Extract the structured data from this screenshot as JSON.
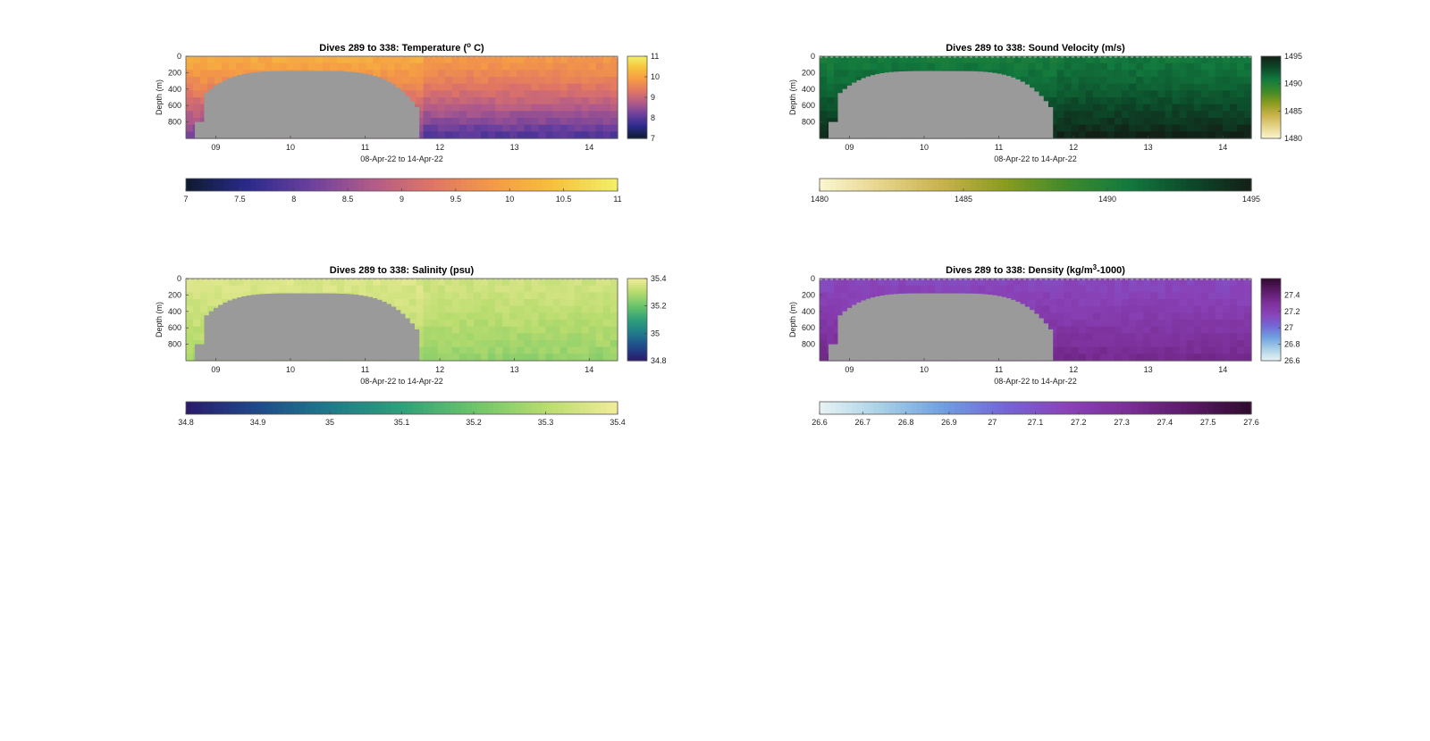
{
  "figure": {
    "date_range_label": "08-Apr-22 to 14-Apr-22",
    "depth_label": "Depth (m)"
  },
  "chart_data": [
    {
      "type": "heatmap",
      "title": "Dives 289 to 338: Temperature (° C)",
      "title_parts": [
        "Dives 289 to 338: Temperature (",
        "o",
        " C)"
      ],
      "xlabel": "08-Apr-22 to 14-Apr-22",
      "ylabel": "Depth (m)",
      "x_ticks": [
        "09",
        "10",
        "11",
        "12",
        "13",
        "14"
      ],
      "y_ticks": [
        0,
        200,
        400,
        600,
        800
      ],
      "ylim": [
        0,
        1000
      ],
      "y_reversed": true,
      "colorbar_side_ticks": [
        7,
        8,
        9,
        10,
        11
      ],
      "colorbar_bottom_ticks": [
        "7",
        "7.5",
        "8",
        "8.5",
        "9",
        "9.5",
        "10",
        "10.5",
        "11"
      ],
      "clim": [
        7,
        11
      ],
      "colormap": [
        "#0e1a2f",
        "#2a2a8c",
        "#6a3f9e",
        "#b05a8a",
        "#e07565",
        "#f59a45",
        "#f7c23c",
        "#f2f06a"
      ],
      "mask_color": "#9a9a9a",
      "surface_value": 10.1,
      "deep_value": 8.1,
      "east_shift": -0.25
    },
    {
      "type": "heatmap",
      "title": "Dives 289 to 338: Sound Velocity (m/s)",
      "title_parts": [
        "Dives 289 to 338: Sound Velocity (m/s)",
        "",
        ""
      ],
      "xlabel": "08-Apr-22 to 14-Apr-22",
      "ylabel": "Depth (m)",
      "x_ticks": [
        "09",
        "10",
        "11",
        "12",
        "13",
        "14"
      ],
      "y_ticks": [
        0,
        200,
        400,
        600,
        800
      ],
      "ylim": [
        0,
        1000
      ],
      "y_reversed": true,
      "colorbar_side_ticks": [
        1480,
        1485,
        1490,
        1495
      ],
      "colorbar_bottom_ticks": [
        "1480",
        "1485",
        "1490",
        "1495"
      ],
      "clim": [
        1480,
        1495
      ],
      "colormap": [
        "#fbf6d0",
        "#e6d48a",
        "#c8b24a",
        "#8a9c1e",
        "#3f8a2a",
        "#127a3e",
        "#0c4a2a",
        "#131f16"
      ],
      "mask_color": "#9a9a9a",
      "surface_value": 1490.5,
      "deep_value": 1494.6,
      "east_shift": 0.3
    },
    {
      "type": "heatmap",
      "title": "Dives 289 to 338: Salinity (psu)",
      "title_parts": [
        "Dives 289 to 338: Salinity (psu)",
        "",
        ""
      ],
      "xlabel": "08-Apr-22 to 14-Apr-22",
      "ylabel": "Depth (m)",
      "x_ticks": [
        "09",
        "10",
        "11",
        "12",
        "13",
        "14"
      ],
      "y_ticks": [
        0,
        200,
        400,
        600,
        800
      ],
      "ylim": [
        0,
        1000
      ],
      "y_reversed": true,
      "colorbar_side_ticks": [
        34.8,
        35,
        35.2,
        35.4
      ],
      "colorbar_bottom_ticks": [
        "34.8",
        "34.9",
        "35",
        "35.1",
        "35.2",
        "35.3",
        "35.4"
      ],
      "clim": [
        34.8,
        35.4
      ],
      "colormap": [
        "#2a1a6a",
        "#1f4a8a",
        "#1f7a8a",
        "#2fa07a",
        "#6cc46a",
        "#b8dc6e",
        "#f2ec9a"
      ],
      "mask_color": "#9a9a9a",
      "surface_value": 35.36,
      "deep_value": 35.27,
      "east_shift": -0.02
    },
    {
      "type": "heatmap",
      "title": "Dives 289 to 338: Density (kg/m³-1000)",
      "title_parts": [
        "Dives 289 to 338: Density (kg/m",
        "3",
        "-1000)"
      ],
      "xlabel": "08-Apr-22 to 14-Apr-22",
      "ylabel": "Depth (m)",
      "x_ticks": [
        "09",
        "10",
        "11",
        "12",
        "13",
        "14"
      ],
      "y_ticks": [
        0,
        200,
        400,
        600,
        800
      ],
      "ylim": [
        0,
        1000
      ],
      "y_reversed": true,
      "colorbar_side_ticks": [
        26.6,
        26.8,
        27,
        27.2,
        27.4
      ],
      "colorbar_bottom_ticks": [
        "26.6",
        "26.7",
        "26.8",
        "26.9",
        "27",
        "27.1",
        "27.2",
        "27.3",
        "27.4",
        "27.5",
        "27.6"
      ],
      "clim": [
        26.6,
        27.6
      ],
      "colormap": [
        "#e8f3f4",
        "#a8d0e6",
        "#6f9fe0",
        "#7466d6",
        "#8a42b8",
        "#7a2e96",
        "#5a1a66",
        "#2f0a2e"
      ],
      "mask_color": "#9a9a9a",
      "surface_value": 27.15,
      "deep_value": 27.35,
      "east_shift": 0.0
    }
  ]
}
